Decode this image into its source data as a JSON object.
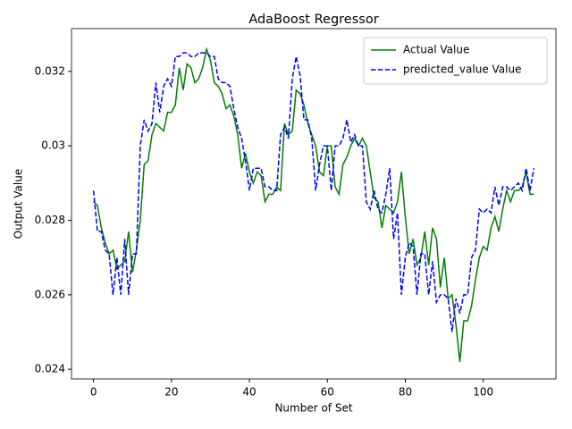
{
  "chart_data": {
    "type": "line",
    "title": "AdaBoost Regressor",
    "xlabel": "Number of Set",
    "ylabel": "Output Value",
    "x": [
      0,
      1,
      2,
      3,
      4,
      5,
      6,
      7,
      8,
      9,
      10,
      11,
      12,
      13,
      14,
      15,
      16,
      17,
      18,
      19,
      20,
      21,
      22,
      23,
      24,
      25,
      26,
      27,
      28,
      29,
      30,
      31,
      32,
      33,
      34,
      35,
      36,
      37,
      38,
      39,
      40,
      41,
      42,
      43,
      44,
      45,
      46,
      47,
      48,
      49,
      50,
      51,
      52,
      53,
      54,
      55,
      56,
      57,
      58,
      59,
      60,
      61,
      62,
      63,
      64,
      65,
      66,
      67,
      68,
      69,
      70,
      71,
      72,
      73,
      74,
      75,
      76,
      77,
      78,
      79,
      80,
      81,
      82,
      83,
      84,
      85,
      86,
      87,
      88,
      89,
      90,
      91,
      92,
      93,
      94,
      95,
      96,
      97,
      98,
      99,
      100,
      101,
      102,
      103,
      104,
      105,
      106,
      107,
      108,
      109,
      110,
      111,
      112,
      113
    ],
    "series": [
      {
        "name": "Actual Value",
        "color": "#008000",
        "dash": false,
        "values": [
          0.0285,
          0.0284,
          0.0278,
          0.0274,
          0.0271,
          0.0272,
          0.0267,
          0.0268,
          0.0269,
          0.0277,
          0.0266,
          0.0272,
          0.028,
          0.0295,
          0.0296,
          0.0303,
          0.0306,
          0.0305,
          0.0304,
          0.0309,
          0.0309,
          0.0311,
          0.0321,
          0.0315,
          0.0322,
          0.0321,
          0.0317,
          0.0318,
          0.0321,
          0.0326,
          0.0323,
          0.0317,
          0.0316,
          0.0314,
          0.031,
          0.0311,
          0.0308,
          0.0303,
          0.0294,
          0.0298,
          0.0293,
          0.029,
          0.0293,
          0.0292,
          0.0285,
          0.0287,
          0.0287,
          0.0289,
          0.0288,
          0.0306,
          0.0303,
          0.0304,
          0.0315,
          0.0314,
          0.0311,
          0.0306,
          0.0303,
          0.03,
          0.0293,
          0.0292,
          0.03,
          0.03,
          0.0289,
          0.0287,
          0.0295,
          0.0297,
          0.03,
          0.0302,
          0.03,
          0.0302,
          0.03,
          0.0293,
          0.0286,
          0.0285,
          0.0278,
          0.0284,
          0.0283,
          0.0282,
          0.0285,
          0.0293,
          0.0281,
          0.0271,
          0.0275,
          0.0268,
          0.027,
          0.0277,
          0.0268,
          0.0278,
          0.0275,
          0.0262,
          0.027,
          0.0259,
          0.026,
          0.0252,
          0.0242,
          0.0253,
          0.0253,
          0.0257,
          0.0264,
          0.027,
          0.0273,
          0.0272,
          0.0278,
          0.0281,
          0.0277,
          0.0283,
          0.0288,
          0.0285,
          0.0288,
          0.0288,
          0.0289,
          0.0293,
          0.0287,
          0.0287
        ]
      },
      {
        "name": "predicted_value Value",
        "color": "#0000ff",
        "dash": true,
        "values": [
          0.0288,
          0.0277,
          0.0277,
          0.0272,
          0.0271,
          0.026,
          0.027,
          0.026,
          0.0275,
          0.026,
          0.0271,
          0.0271,
          0.03,
          0.0307,
          0.0304,
          0.0306,
          0.0317,
          0.0309,
          0.0316,
          0.0318,
          0.0316,
          0.0324,
          0.0324,
          0.0325,
          0.0325,
          0.0324,
          0.0324,
          0.0325,
          0.0325,
          0.0325,
          0.0324,
          0.0324,
          0.0318,
          0.0317,
          0.0317,
          0.0316,
          0.031,
          0.0305,
          0.0302,
          0.0296,
          0.0288,
          0.0294,
          0.0294,
          0.0294,
          0.0289,
          0.0289,
          0.0288,
          0.0288,
          0.0303,
          0.0305,
          0.0302,
          0.0318,
          0.0324,
          0.0319,
          0.0307,
          0.0307,
          0.0302,
          0.0288,
          0.0295,
          0.03,
          0.03,
          0.0288,
          0.03,
          0.03,
          0.0302,
          0.0307,
          0.0301,
          0.0303,
          0.03,
          0.03,
          0.0285,
          0.0283,
          0.0288,
          0.0283,
          0.0282,
          0.0287,
          0.0294,
          0.0275,
          0.0282,
          0.026,
          0.027,
          0.0274,
          0.0273,
          0.026,
          0.0271,
          0.0271,
          0.026,
          0.0269,
          0.0258,
          0.026,
          0.026,
          0.0259,
          0.025,
          0.0259,
          0.0255,
          0.026,
          0.026,
          0.027,
          0.0272,
          0.0283,
          0.0282,
          0.0283,
          0.0282,
          0.0289,
          0.0284,
          0.0289,
          0.0289,
          0.0288,
          0.0289,
          0.029,
          0.0288,
          0.0294,
          0.0288,
          0.0294
        ]
      }
    ],
    "xlim": [
      -5.65,
      118.65
    ],
    "ylim": [
      0.02374,
      0.03315
    ],
    "xticks": [
      0,
      20,
      40,
      60,
      80,
      100
    ],
    "yticks": [
      0.024,
      0.026,
      0.028,
      0.03,
      0.032
    ],
    "legend": "upper right"
  }
}
